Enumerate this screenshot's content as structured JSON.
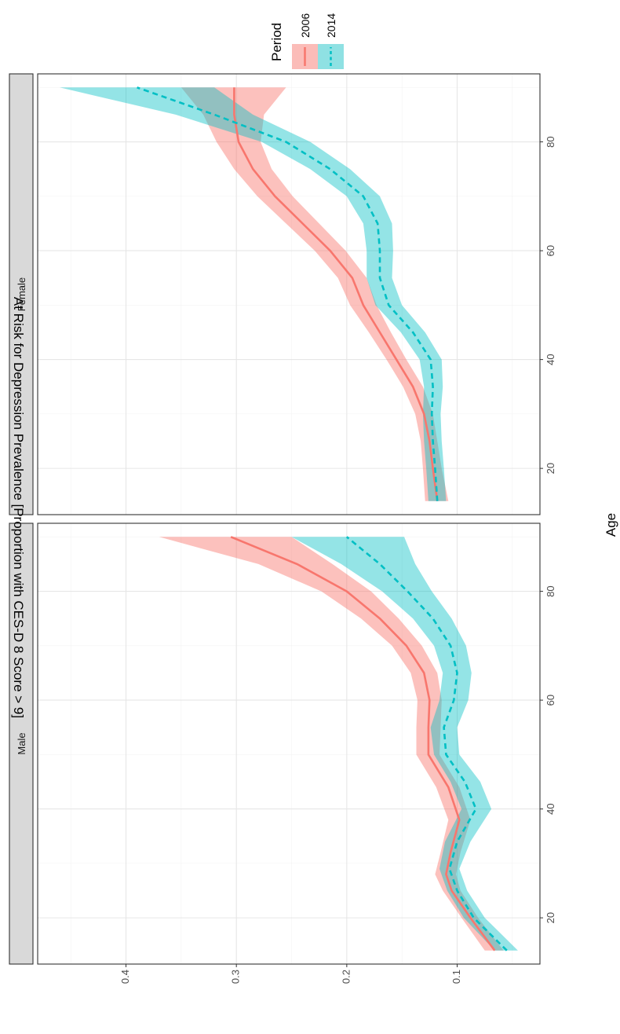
{
  "chart_data": {
    "type": "line",
    "ylabel": "At Risk for Depression Prevalence [Proportion with CES-D 8 Score > 9]",
    "xlabel": "Age",
    "legend": {
      "title": "Period",
      "position": "right",
      "entries": [
        "2006",
        "2014"
      ]
    },
    "x_ticks": [
      20,
      40,
      60,
      80
    ],
    "y_ticks": [
      0.1,
      0.2,
      0.3,
      0.4
    ],
    "xlim": [
      11.5,
      92.5
    ],
    "ylim": [
      0.025,
      0.48
    ],
    "grid": true,
    "colors": {
      "2006": "#F8766D",
      "2014": "#00BFC4"
    },
    "panels": [
      {
        "name": "Male",
        "series": [
          {
            "name": "2006",
            "x": [
              14,
              20,
              25,
              28,
              32,
              38,
              44,
              50,
              55,
              60,
              65,
              70,
              75,
              80,
              85,
              90
            ],
            "y": [
              0.066,
              0.088,
              0.105,
              0.11,
              0.106,
              0.098,
              0.108,
              0.126,
              0.126,
              0.125,
              0.13,
              0.146,
              0.17,
              0.2,
              0.245,
              0.305
            ],
            "lower": [
              0.058,
              0.081,
              0.097,
              0.101,
              0.097,
              0.088,
              0.098,
              0.116,
              0.115,
              0.114,
              0.118,
              0.132,
              0.153,
              0.178,
              0.213,
              0.25
            ],
            "upper": [
              0.075,
              0.096,
              0.113,
              0.12,
              0.115,
              0.108,
              0.119,
              0.137,
              0.137,
              0.136,
              0.142,
              0.159,
              0.187,
              0.223,
              0.28,
              0.37
            ]
          },
          {
            "name": "2014",
            "x": [
              14,
              20,
              25,
              29,
              34,
              40,
              45,
              50,
              55,
              60,
              65,
              70,
              75,
              80,
              85,
              90
            ],
            "y": [
              0.055,
              0.085,
              0.1,
              0.107,
              0.1,
              0.083,
              0.093,
              0.11,
              0.112,
              0.103,
              0.1,
              0.106,
              0.122,
              0.145,
              0.17,
              0.2
            ],
            "lower": [
              0.045,
              0.075,
              0.091,
              0.098,
              0.088,
              0.069,
              0.079,
              0.098,
              0.1,
              0.09,
              0.087,
              0.092,
              0.105,
              0.123,
              0.138,
              0.148
            ],
            "upper": [
              0.066,
              0.094,
              0.109,
              0.116,
              0.111,
              0.096,
              0.106,
              0.121,
              0.124,
              0.116,
              0.113,
              0.121,
              0.14,
              0.168,
              0.205,
              0.25
            ]
          }
        ]
      },
      {
        "name": "Female",
        "series": [
          {
            "name": "2006",
            "x": [
              14,
              20,
              25,
              30,
              35,
              40,
              45,
              50,
              55,
              60,
              65,
              70,
              75,
              80,
              85,
              90
            ],
            "y": [
              0.118,
              0.122,
              0.125,
              0.13,
              0.14,
              0.155,
              0.17,
              0.185,
              0.195,
              0.215,
              0.24,
              0.265,
              0.285,
              0.298,
              0.302,
              0.302
            ],
            "lower": [
              0.108,
              0.114,
              0.118,
              0.122,
              0.131,
              0.146,
              0.16,
              0.173,
              0.182,
              0.201,
              0.225,
              0.249,
              0.268,
              0.278,
              0.275,
              0.255
            ],
            "upper": [
              0.129,
              0.131,
              0.133,
              0.138,
              0.149,
              0.164,
              0.18,
              0.197,
              0.208,
              0.229,
              0.255,
              0.281,
              0.302,
              0.318,
              0.33,
              0.35
            ]
          },
          {
            "name": "2014",
            "x": [
              14,
              20,
              25,
              30,
              35,
              40,
              45,
              50,
              55,
              60,
              65,
              70,
              75,
              80,
              85,
              90
            ],
            "y": [
              0.118,
              0.12,
              0.122,
              0.123,
              0.122,
              0.124,
              0.14,
              0.162,
              0.17,
              0.17,
              0.172,
              0.185,
              0.215,
              0.255,
              0.32,
              0.39
            ],
            "lower": [
              0.11,
              0.112,
              0.114,
              0.115,
              0.113,
              0.114,
              0.129,
              0.15,
              0.159,
              0.158,
              0.159,
              0.17,
              0.197,
              0.233,
              0.285,
              0.32
            ],
            "upper": [
              0.126,
              0.128,
              0.13,
              0.131,
              0.13,
              0.134,
              0.151,
              0.174,
              0.182,
              0.182,
              0.185,
              0.2,
              0.233,
              0.277,
              0.355,
              0.46
            ]
          }
        ]
      }
    ]
  }
}
